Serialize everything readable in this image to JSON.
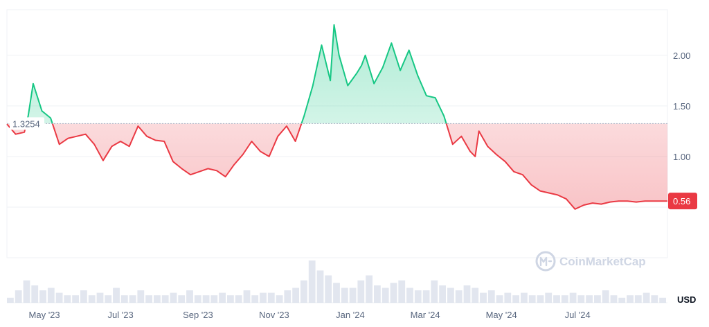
{
  "chart_data": {
    "type": "area",
    "title": "",
    "xlabel": "",
    "ylabel": "",
    "unit": "USD",
    "x_ticks": [
      "May '23",
      "Jul '23",
      "Sep '23",
      "Nov '23",
      "Jan '24",
      "Mar '24",
      "May '24",
      "Jul '24"
    ],
    "y_ticks": [
      "2.00",
      "1.50",
      "1.00"
    ],
    "ylim": [
      0.0,
      2.45
    ],
    "reference_value": 1.3254,
    "reference_label": "1.3254",
    "current_value": 0.56,
    "current_label": "0.56",
    "grid": true,
    "colors": {
      "above": "#16c784",
      "below": "#ea3943",
      "above_fill": "#16c784",
      "below_fill": "#ea3943",
      "grid": "#eff2f5",
      "volume": "#cfd6e4"
    },
    "series": [
      {
        "x": [
          "2023-04-01",
          "2023-04-08",
          "2023-04-15",
          "2023-04-18",
          "2023-04-22",
          "2023-04-29",
          "2023-05-06",
          "2023-05-13",
          "2023-05-20",
          "2023-05-27",
          "2023-06-03",
          "2023-06-10",
          "2023-06-17",
          "2023-06-24",
          "2023-07-01",
          "2023-07-08",
          "2023-07-15",
          "2023-07-22",
          "2023-07-29",
          "2023-08-05",
          "2023-08-12",
          "2023-08-19",
          "2023-08-26",
          "2023-09-02",
          "2023-09-09",
          "2023-09-16",
          "2023-09-23",
          "2023-09-30",
          "2023-10-07",
          "2023-10-14",
          "2023-10-21",
          "2023-10-28",
          "2023-11-04",
          "2023-11-11",
          "2023-11-18",
          "2023-11-25",
          "2023-12-02",
          "2023-12-09",
          "2023-12-16",
          "2023-12-19",
          "2023-12-23",
          "2023-12-30",
          "2024-01-06",
          "2024-01-10",
          "2024-01-13",
          "2024-01-20",
          "2024-01-27",
          "2024-02-03",
          "2024-02-10",
          "2024-02-17",
          "2024-02-24",
          "2024-03-02",
          "2024-03-09",
          "2024-03-16",
          "2024-03-23",
          "2024-03-30",
          "2024-04-06",
          "2024-04-10",
          "2024-04-13",
          "2024-04-20",
          "2024-04-27",
          "2024-05-04",
          "2024-05-11",
          "2024-05-18",
          "2024-05-25",
          "2024-06-01",
          "2024-06-08",
          "2024-06-15",
          "2024-06-22",
          "2024-06-29",
          "2024-07-06",
          "2024-07-13",
          "2024-07-20",
          "2024-07-27",
          "2024-08-03",
          "2024-08-10",
          "2024-08-17",
          "2024-08-24",
          "2024-08-31",
          "2024-09-07",
          "2024-09-11"
        ],
        "values": [
          1.32,
          1.22,
          1.24,
          1.4,
          1.72,
          1.45,
          1.38,
          1.12,
          1.18,
          1.2,
          1.22,
          1.12,
          0.96,
          1.1,
          1.15,
          1.1,
          1.3,
          1.2,
          1.16,
          1.15,
          0.95,
          0.88,
          0.82,
          0.85,
          0.88,
          0.86,
          0.8,
          0.92,
          1.02,
          1.15,
          1.05,
          1.0,
          1.2,
          1.3,
          1.15,
          1.4,
          1.7,
          2.1,
          1.75,
          2.3,
          2.0,
          1.7,
          1.82,
          1.9,
          2.0,
          1.72,
          1.88,
          2.12,
          1.85,
          2.05,
          1.8,
          1.6,
          1.58,
          1.4,
          1.12,
          1.2,
          1.05,
          1.0,
          1.25,
          1.1,
          1.02,
          0.95,
          0.85,
          0.82,
          0.72,
          0.66,
          0.64,
          0.62,
          0.58,
          0.48,
          0.52,
          0.54,
          0.53,
          0.55,
          0.56,
          0.56,
          0.55,
          0.56,
          0.56,
          0.56,
          0.56
        ]
      }
    ],
    "volume": [
      2,
      5,
      9,
      7,
      5,
      6,
      4,
      3,
      3,
      5,
      3,
      4,
      3,
      6,
      3,
      3,
      5,
      3,
      3,
      3,
      4,
      3,
      5,
      3,
      3,
      3,
      4,
      3,
      3,
      5,
      3,
      4,
      4,
      3,
      5,
      6,
      9,
      17,
      13,
      11,
      8,
      6,
      6,
      9,
      11,
      7,
      6,
      8,
      9,
      6,
      5,
      5,
      9,
      7,
      6,
      5,
      7,
      6,
      4,
      5,
      3,
      4,
      3,
      4,
      3,
      3,
      4,
      3,
      3,
      4,
      3,
      3,
      3,
      5,
      3,
      2,
      3,
      3,
      4,
      3,
      2
    ],
    "watermark": "CoinMarketCap"
  }
}
